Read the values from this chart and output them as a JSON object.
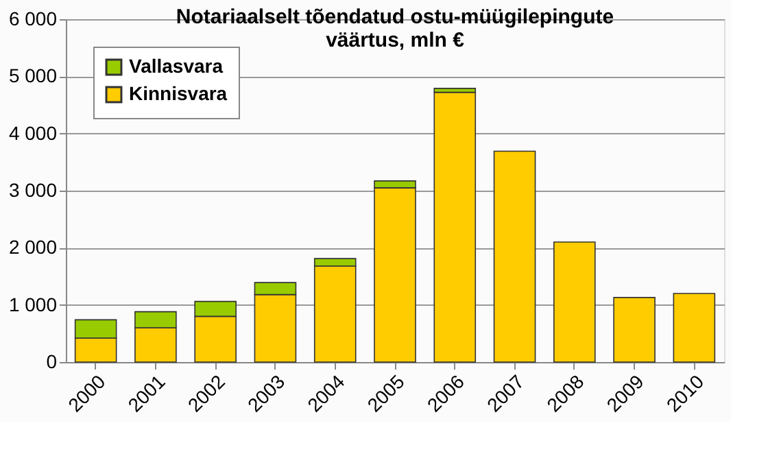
{
  "chart_data": {
    "type": "bar",
    "title": [
      "Notariaalselt tõendatud ostu-müügilepingute",
      "väärtus, mln €"
    ],
    "categories": [
      "2000",
      "2001",
      "2002",
      "2003",
      "2004",
      "2005",
      "2006",
      "2007",
      "2008",
      "2009",
      "2010"
    ],
    "stacked": true,
    "series": [
      {
        "name": "Kinnisvara",
        "color": "#ffcc00",
        "values": [
          420,
          600,
          800,
          1180,
          1680,
          3050,
          4720,
          3690,
          2100,
          1130,
          1200
        ]
      },
      {
        "name": "Vallasvara",
        "color": "#99cc00",
        "values": [
          320,
          280,
          260,
          210,
          130,
          120,
          70,
          null,
          null,
          null,
          null
        ]
      }
    ],
    "ylim": [
      0,
      6000
    ],
    "yticks": [
      {
        "value": 0,
        "label": "0"
      },
      {
        "value": 1000,
        "label": "1 000"
      },
      {
        "value": 2000,
        "label": "2 000"
      },
      {
        "value": 3000,
        "label": "3 000"
      },
      {
        "value": 4000,
        "label": "4 000"
      },
      {
        "value": 5000,
        "label": "5 000"
      },
      {
        "value": 6000,
        "label": "6 000"
      }
    ],
    "grid": "y",
    "legend": "top left"
  }
}
